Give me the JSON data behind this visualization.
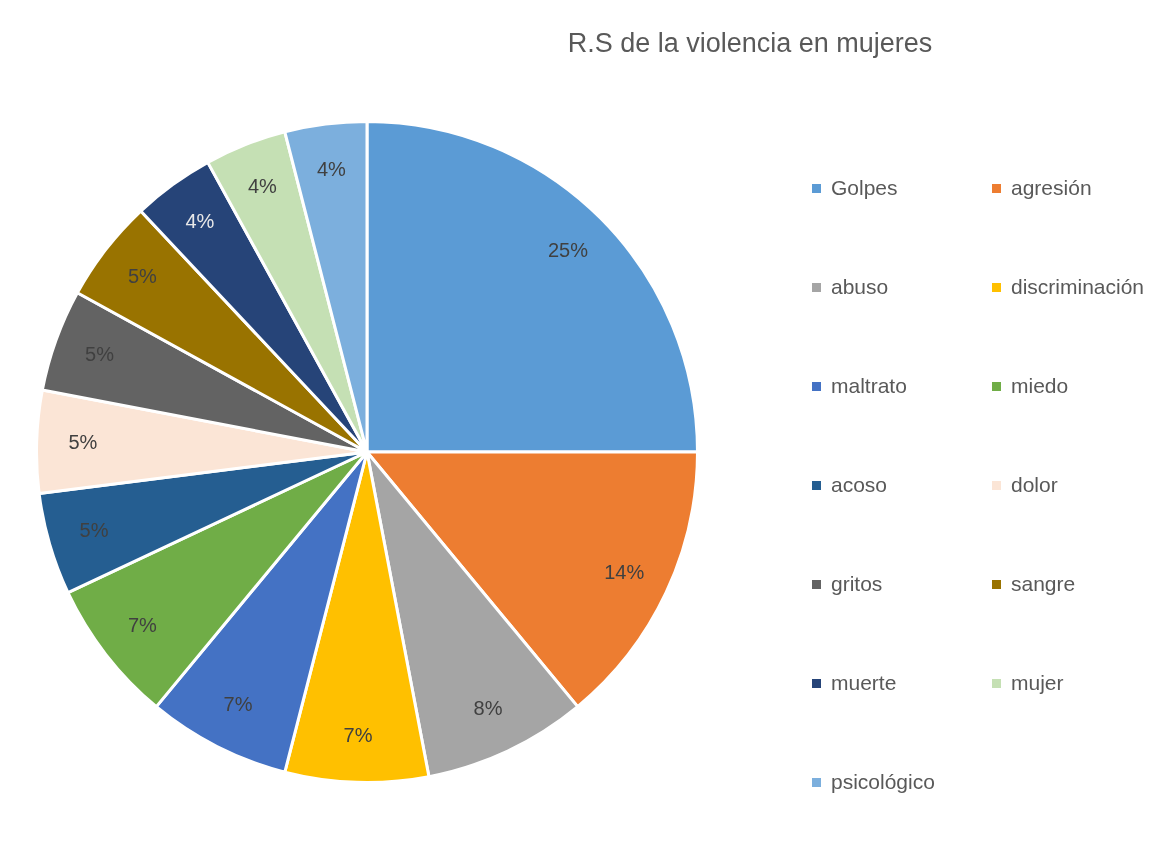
{
  "chart_data": {
    "type": "pie",
    "title": "R.S de la violencia en mujeres",
    "categories": [
      "Golpes",
      "agresión",
      "abuso",
      "discriminación",
      "maltrato",
      "miedo",
      "acoso",
      "dolor",
      "gritos",
      "sangre",
      "muerte",
      "mujer",
      "psicológico"
    ],
    "values": [
      25,
      14,
      8,
      7,
      7,
      7,
      5,
      5,
      5,
      5,
      4,
      4,
      4
    ],
    "value_labels": [
      "25%",
      "14%",
      "8%",
      "7%",
      "7%",
      "7%",
      "5%",
      "5%",
      "5%",
      "5%",
      "4%",
      "4%",
      "4%"
    ],
    "colors": [
      "#5b9bd5",
      "#ed7d31",
      "#a5a5a5",
      "#ffc000",
      "#4472c4",
      "#70ad47",
      "#255e91",
      "#fbe5d6",
      "#636363",
      "#997300",
      "#264478",
      "#c5e0b4",
      "#7cafdd"
    ],
    "legend": "right"
  }
}
